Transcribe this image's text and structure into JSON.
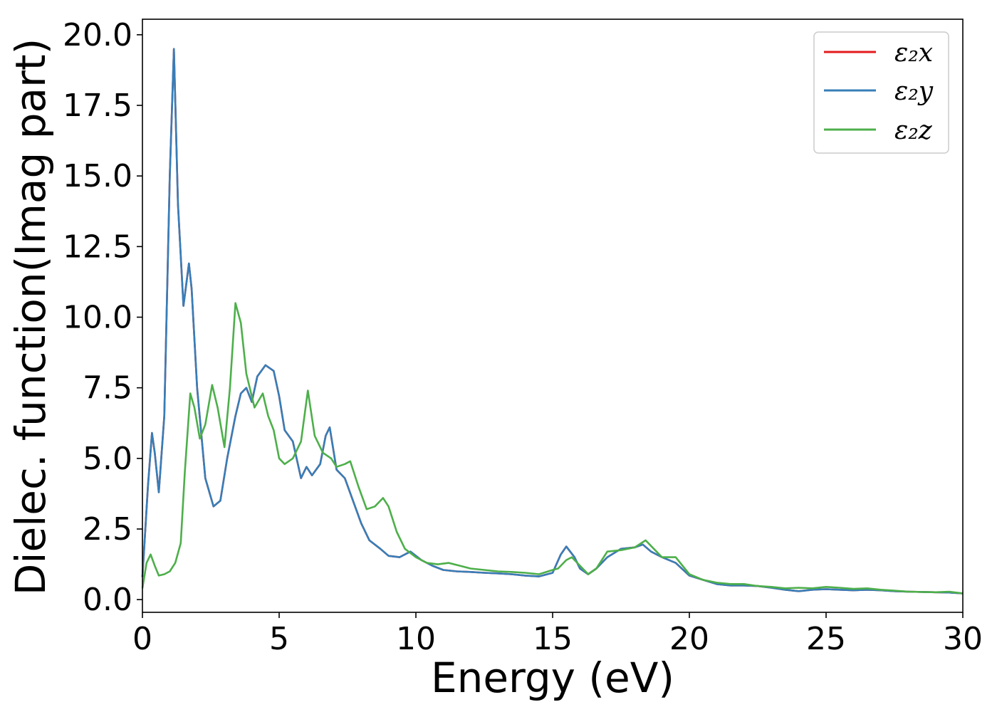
{
  "chart_data": {
    "type": "line",
    "xlabel": "Energy (eV)",
    "ylabel": "Dielec. function(Imag part)",
    "xlim": [
      0,
      30
    ],
    "ylim": [
      -0.45,
      20.55
    ],
    "xticks": [
      0,
      5,
      10,
      15,
      20,
      25,
      30
    ],
    "xtick_labels": [
      "0",
      "5",
      "10",
      "15",
      "20",
      "25",
      "30"
    ],
    "yticks": [
      0,
      2.5,
      5,
      7.5,
      10,
      12.5,
      15,
      17.5,
      20
    ],
    "ytick_labels": [
      "0.0",
      "2.5",
      "5.0",
      "7.5",
      "10.0",
      "12.5",
      "15.0",
      "17.5",
      "20.0"
    ],
    "grid": false,
    "legend_position": "top-right",
    "series": [
      {
        "name": "ε₂x",
        "color": "#e41a1c",
        "x": [
          0,
          0.2,
          0.35,
          0.45,
          0.6,
          0.8,
          1.0,
          1.15,
          1.3,
          1.5,
          1.7,
          1.8,
          2.0,
          2.3,
          2.6,
          2.85,
          3.1,
          3.4,
          3.6,
          3.8,
          4.0,
          4.2,
          4.5,
          4.8,
          5.0,
          5.2,
          5.5,
          5.8,
          6.0,
          6.2,
          6.5,
          6.7,
          6.85,
          7.1,
          7.4,
          7.7,
          8.0,
          8.3,
          8.7,
          9.0,
          9.4,
          9.8,
          10.2,
          10.6,
          11.0,
          11.5,
          12.0,
          12.5,
          13.0,
          13.5,
          14.0,
          14.5,
          15.0,
          15.3,
          15.5,
          15.8,
          16.0,
          16.3,
          16.6,
          17.0,
          17.5,
          18.0,
          18.3,
          18.6,
          19.0,
          19.5,
          20.0,
          20.5,
          21.0,
          21.5,
          22.0,
          22.5,
          23.0,
          23.5,
          24.0,
          24.5,
          25.0,
          25.5,
          26.0,
          26.5,
          27.0,
          27.5,
          28.0,
          29.0,
          29.5,
          30.0
        ],
        "y": [
          0.8,
          4.0,
          5.9,
          5.2,
          3.8,
          6.5,
          15.0,
          19.5,
          14.0,
          10.4,
          11.9,
          11.0,
          7.5,
          4.3,
          3.3,
          3.5,
          5.0,
          6.5,
          7.3,
          7.5,
          7.0,
          7.9,
          8.3,
          8.1,
          7.2,
          6.0,
          5.6,
          4.3,
          4.7,
          4.4,
          4.8,
          5.8,
          6.1,
          4.6,
          4.3,
          3.5,
          2.7,
          2.1,
          1.8,
          1.55,
          1.5,
          1.7,
          1.4,
          1.2,
          1.05,
          1.0,
          0.98,
          0.95,
          0.93,
          0.9,
          0.85,
          0.82,
          0.95,
          1.6,
          1.88,
          1.5,
          1.1,
          0.9,
          1.1,
          1.5,
          1.8,
          1.85,
          1.95,
          1.7,
          1.5,
          1.3,
          0.85,
          0.7,
          0.55,
          0.5,
          0.5,
          0.48,
          0.42,
          0.35,
          0.3,
          0.35,
          0.37,
          0.35,
          0.33,
          0.35,
          0.33,
          0.3,
          0.28,
          0.26,
          0.25,
          0.22
        ]
      },
      {
        "name": "ε₂y",
        "color": "#377eb8",
        "x": [
          0,
          0.2,
          0.35,
          0.45,
          0.6,
          0.8,
          1.0,
          1.15,
          1.3,
          1.5,
          1.7,
          1.8,
          2.0,
          2.3,
          2.6,
          2.85,
          3.1,
          3.4,
          3.6,
          3.8,
          4.0,
          4.2,
          4.5,
          4.8,
          5.0,
          5.2,
          5.5,
          5.8,
          6.0,
          6.2,
          6.5,
          6.7,
          6.85,
          7.1,
          7.4,
          7.7,
          8.0,
          8.3,
          8.7,
          9.0,
          9.4,
          9.8,
          10.2,
          10.6,
          11.0,
          11.5,
          12.0,
          12.5,
          13.0,
          13.5,
          14.0,
          14.5,
          15.0,
          15.3,
          15.5,
          15.8,
          16.0,
          16.3,
          16.6,
          17.0,
          17.5,
          18.0,
          18.3,
          18.6,
          19.0,
          19.5,
          20.0,
          20.5,
          21.0,
          21.5,
          22.0,
          22.5,
          23.0,
          23.5,
          24.0,
          24.5,
          25.0,
          25.5,
          26.0,
          26.5,
          27.0,
          27.5,
          28.0,
          29.0,
          29.5,
          30.0
        ],
        "y": [
          0.8,
          4.0,
          5.9,
          5.2,
          3.8,
          6.5,
          15.0,
          19.5,
          14.0,
          10.4,
          11.9,
          11.0,
          7.5,
          4.3,
          3.3,
          3.5,
          5.0,
          6.5,
          7.3,
          7.5,
          7.0,
          7.9,
          8.3,
          8.1,
          7.2,
          6.0,
          5.6,
          4.3,
          4.7,
          4.4,
          4.8,
          5.8,
          6.1,
          4.6,
          4.3,
          3.5,
          2.7,
          2.1,
          1.8,
          1.55,
          1.5,
          1.7,
          1.4,
          1.2,
          1.05,
          1.0,
          0.98,
          0.95,
          0.93,
          0.9,
          0.85,
          0.82,
          0.95,
          1.6,
          1.88,
          1.5,
          1.1,
          0.9,
          1.1,
          1.5,
          1.8,
          1.85,
          1.95,
          1.7,
          1.5,
          1.3,
          0.85,
          0.7,
          0.55,
          0.5,
          0.5,
          0.48,
          0.42,
          0.35,
          0.3,
          0.35,
          0.37,
          0.35,
          0.33,
          0.35,
          0.33,
          0.3,
          0.28,
          0.26,
          0.25,
          0.22
        ]
      },
      {
        "name": "ε₂z",
        "color": "#4daf4a",
        "x": [
          0,
          0.15,
          0.3,
          0.45,
          0.6,
          0.8,
          1.0,
          1.2,
          1.4,
          1.55,
          1.75,
          1.9,
          2.1,
          2.3,
          2.55,
          2.75,
          3.0,
          3.2,
          3.4,
          3.6,
          3.8,
          4.1,
          4.4,
          4.6,
          4.8,
          5.0,
          5.2,
          5.5,
          5.8,
          6.05,
          6.3,
          6.6,
          6.9,
          7.1,
          7.4,
          7.6,
          7.9,
          8.2,
          8.5,
          8.8,
          9.0,
          9.3,
          9.6,
          10.0,
          10.4,
          10.8,
          11.2,
          11.6,
          12.0,
          12.5,
          13.0,
          13.5,
          14.0,
          14.5,
          15.0,
          15.2,
          15.5,
          15.7,
          16.0,
          16.3,
          16.6,
          17.0,
          17.5,
          18.0,
          18.4,
          18.7,
          19.0,
          19.5,
          20.0,
          20.5,
          21.0,
          21.5,
          22.0,
          22.5,
          23.0,
          23.5,
          24.0,
          24.5,
          25.0,
          25.5,
          26.0,
          26.5,
          27.0,
          27.5,
          28.0,
          29.0,
          29.5,
          30.0
        ],
        "y": [
          0.4,
          1.3,
          1.6,
          1.2,
          0.85,
          0.9,
          1.0,
          1.3,
          2.0,
          4.5,
          7.3,
          6.8,
          5.7,
          6.2,
          7.6,
          6.8,
          5.4,
          7.5,
          10.5,
          9.8,
          8.0,
          6.8,
          7.3,
          6.5,
          6.0,
          5.0,
          4.8,
          5.0,
          5.6,
          7.4,
          5.8,
          5.2,
          5.0,
          4.7,
          4.8,
          4.9,
          4.0,
          3.2,
          3.3,
          3.6,
          3.3,
          2.4,
          1.8,
          1.5,
          1.3,
          1.25,
          1.3,
          1.2,
          1.1,
          1.05,
          1.0,
          0.98,
          0.95,
          0.9,
          1.05,
          1.1,
          1.4,
          1.5,
          1.2,
          0.9,
          1.1,
          1.7,
          1.75,
          1.85,
          2.1,
          1.8,
          1.5,
          1.5,
          0.9,
          0.7,
          0.6,
          0.55,
          0.55,
          0.48,
          0.45,
          0.4,
          0.42,
          0.4,
          0.45,
          0.42,
          0.38,
          0.4,
          0.35,
          0.32,
          0.28,
          0.26,
          0.28,
          0.22
        ]
      }
    ]
  }
}
